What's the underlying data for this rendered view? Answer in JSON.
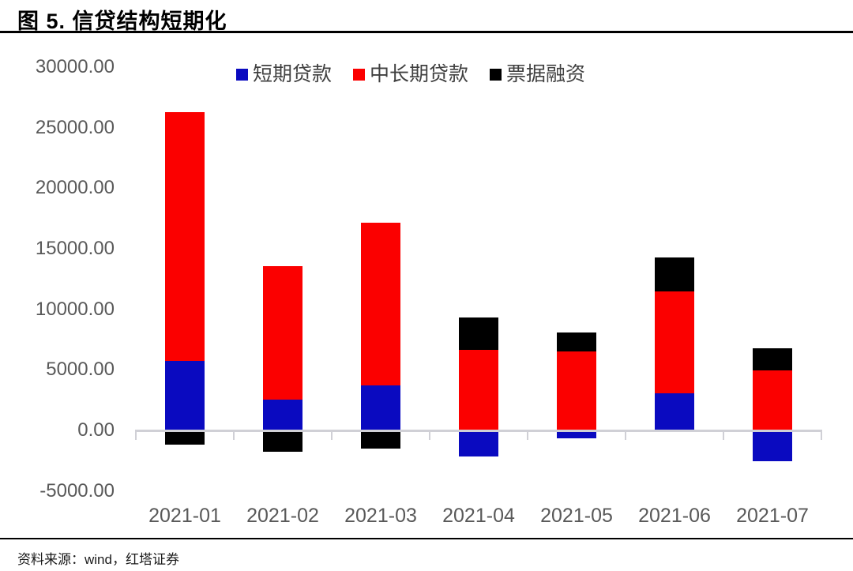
{
  "title": "图 5. 信贷结构短期化",
  "source": "资料来源：wind，红塔证券",
  "chart_data": {
    "type": "bar",
    "stacked": true,
    "title": "图 5. 信贷结构短期化",
    "categories": [
      "2021-01",
      "2021-02",
      "2021-03",
      "2021-04",
      "2021-05",
      "2021-06",
      "2021-07"
    ],
    "series": [
      {
        "name": "短期贷款",
        "color": "#0a0ac0",
        "values": [
          5750,
          2550,
          3700,
          -2150,
          -650,
          3050,
          -2550
        ]
      },
      {
        "name": "中长期贷款",
        "color": "#fb0000",
        "values": [
          20550,
          11000,
          13450,
          6650,
          6500,
          8400,
          4950
        ]
      },
      {
        "name": "票据融资",
        "color": "#000000",
        "values": [
          -1200,
          -1750,
          -1500,
          2700,
          1600,
          2850,
          1800
        ]
      }
    ],
    "yticks": [
      "30000.00",
      "25000.00",
      "20000.00",
      "15000.00",
      "10000.00",
      "5000.00",
      "0.00",
      "-5000.00"
    ],
    "ylim": [
      -5000,
      30000
    ],
    "ytick_step": 5000,
    "xlabel": "",
    "ylabel": "",
    "legend_position": "top",
    "grid": false
  },
  "colors": {
    "axis_line": "#d0d0d6",
    "tick_label": "#595959",
    "legend_text": "#404040",
    "title_text": "#000000"
  }
}
